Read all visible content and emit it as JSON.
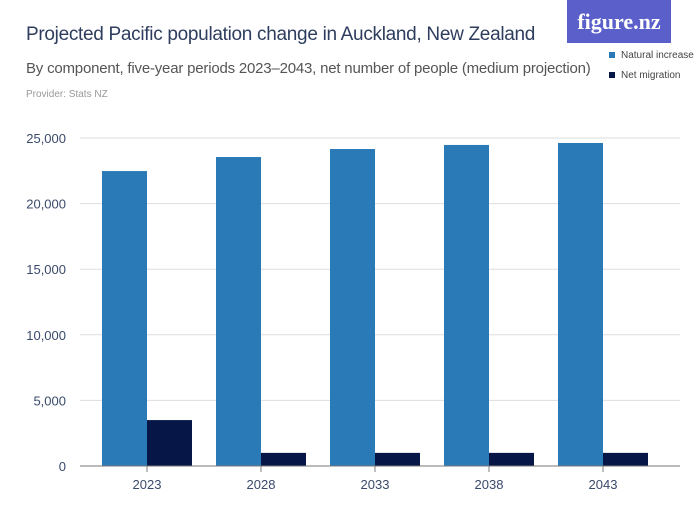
{
  "header": {
    "title": "Projected Pacific population change in Auckland, New Zealand",
    "subtitle": "By component, five-year periods 2023–2043, net number of people (medium projection)",
    "provider": "Provider: Stats NZ",
    "logo": "figure.nz"
  },
  "chart_data": {
    "type": "bar",
    "categories": [
      "2023",
      "2028",
      "2033",
      "2038",
      "2043"
    ],
    "series": [
      {
        "name": "Natural increase",
        "color": "#2a7ab8",
        "values": [
          22480,
          23550,
          24160,
          24470,
          24620
        ]
      },
      {
        "name": "Net migration",
        "color": "#061646",
        "values": [
          3500,
          1000,
          1000,
          1000,
          1000
        ]
      }
    ],
    "ylim": [
      0,
      25000
    ],
    "yticks": [
      0,
      5000,
      10000,
      15000,
      20000,
      25000
    ],
    "ytick_labels": [
      "0",
      "5,000",
      "10,000",
      "15,000",
      "20,000",
      "25,000"
    ],
    "grid": true,
    "legend": "top-right"
  }
}
